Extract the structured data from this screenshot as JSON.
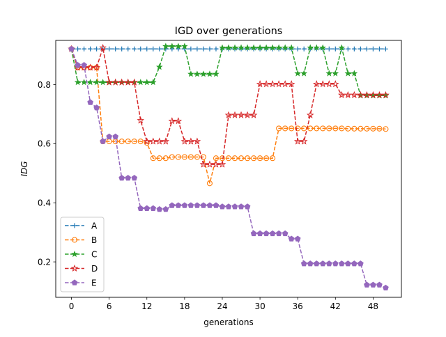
{
  "chart_data": {
    "type": "line",
    "title": "IGD over generations",
    "xlabel": "generations",
    "ylabel": "IDG",
    "xlim": [
      -2.5,
      52.5
    ],
    "ylim": [
      0.08,
      0.95
    ],
    "xticks": [
      0,
      6,
      12,
      18,
      24,
      30,
      36,
      42,
      48
    ],
    "yticks": [
      0.2,
      0.4,
      0.6,
      0.8
    ],
    "ytick_labels": [
      "0.2",
      "0.4",
      "0.6",
      "0.8"
    ],
    "grid": false,
    "legend_position": "lower left",
    "x": [
      0,
      1,
      2,
      3,
      4,
      5,
      6,
      7,
      8,
      9,
      10,
      11,
      12,
      13,
      14,
      15,
      16,
      17,
      18,
      19,
      20,
      21,
      22,
      23,
      24,
      25,
      26,
      27,
      28,
      29,
      30,
      31,
      32,
      33,
      34,
      35,
      36,
      37,
      38,
      39,
      40,
      41,
      42,
      43,
      44,
      45,
      46,
      47,
      48,
      49,
      50
    ],
    "series": [
      {
        "name": "A",
        "color": "#1f77b4",
        "marker": "plus",
        "values": [
          0.921,
          0.921,
          0.921,
          0.921,
          0.921,
          0.921,
          0.921,
          0.921,
          0.921,
          0.921,
          0.921,
          0.921,
          0.921,
          0.921,
          0.921,
          0.921,
          0.921,
          0.921,
          0.921,
          0.921,
          0.921,
          0.921,
          0.921,
          0.921,
          0.921,
          0.921,
          0.921,
          0.921,
          0.921,
          0.921,
          0.921,
          0.921,
          0.921,
          0.921,
          0.921,
          0.921,
          0.921,
          0.921,
          0.921,
          0.921,
          0.921,
          0.921,
          0.921,
          0.921,
          0.921,
          0.921,
          0.921,
          0.921,
          0.921,
          0.921,
          0.921
        ]
      },
      {
        "name": "B",
        "color": "#ff7f0e",
        "marker": "circle",
        "values": [
          0.921,
          0.858,
          0.858,
          0.858,
          0.858,
          0.608,
          0.608,
          0.608,
          0.608,
          0.608,
          0.608,
          0.608,
          0.603,
          0.551,
          0.551,
          0.551,
          0.555,
          0.555,
          0.555,
          0.555,
          0.555,
          0.555,
          0.466,
          0.551,
          0.551,
          0.551,
          0.551,
          0.551,
          0.551,
          0.551,
          0.551,
          0.551,
          0.551,
          0.652,
          0.652,
          0.652,
          0.652,
          0.652,
          0.652,
          0.652,
          0.652,
          0.652,
          0.652,
          0.652,
          0.651,
          0.651,
          0.651,
          0.651,
          0.651,
          0.651,
          0.65
        ]
      },
      {
        "name": "C",
        "color": "#2ca02c",
        "marker": "star",
        "values": [
          0.921,
          0.808,
          0.808,
          0.808,
          0.808,
          0.808,
          0.808,
          0.808,
          0.808,
          0.808,
          0.808,
          0.808,
          0.808,
          0.808,
          0.86,
          0.93,
          0.93,
          0.93,
          0.93,
          0.836,
          0.836,
          0.836,
          0.836,
          0.836,
          0.925,
          0.925,
          0.925,
          0.925,
          0.925,
          0.925,
          0.925,
          0.925,
          0.925,
          0.925,
          0.925,
          0.925,
          0.838,
          0.838,
          0.925,
          0.925,
          0.925,
          0.838,
          0.838,
          0.925,
          0.838,
          0.838,
          0.763,
          0.763,
          0.763,
          0.763,
          0.763
        ]
      },
      {
        "name": "D",
        "color": "#d62728",
        "marker": "star-open",
        "values": [
          0.921,
          0.858,
          0.858,
          0.858,
          0.858,
          0.925,
          0.808,
          0.808,
          0.808,
          0.808,
          0.808,
          0.679,
          0.608,
          0.608,
          0.608,
          0.608,
          0.677,
          0.677,
          0.608,
          0.608,
          0.608,
          0.53,
          0.53,
          0.53,
          0.53,
          0.697,
          0.697,
          0.697,
          0.697,
          0.697,
          0.802,
          0.802,
          0.802,
          0.802,
          0.802,
          0.802,
          0.608,
          0.608,
          0.697,
          0.802,
          0.802,
          0.802,
          0.802,
          0.765,
          0.765,
          0.765,
          0.765,
          0.765,
          0.765,
          0.765,
          0.765
        ]
      },
      {
        "name": "E",
        "color": "#9467bd",
        "marker": "pentagon",
        "values": [
          0.921,
          0.866,
          0.866,
          0.74,
          0.722,
          0.608,
          0.624,
          0.624,
          0.484,
          0.484,
          0.484,
          0.381,
          0.381,
          0.381,
          0.378,
          0.378,
          0.391,
          0.391,
          0.391,
          0.391,
          0.391,
          0.391,
          0.391,
          0.391,
          0.387,
          0.387,
          0.387,
          0.387,
          0.387,
          0.296,
          0.296,
          0.296,
          0.296,
          0.296,
          0.296,
          0.278,
          0.278,
          0.194,
          0.194,
          0.194,
          0.194,
          0.194,
          0.194,
          0.194,
          0.194,
          0.194,
          0.194,
          0.122,
          0.122,
          0.122,
          0.112
        ]
      }
    ]
  }
}
